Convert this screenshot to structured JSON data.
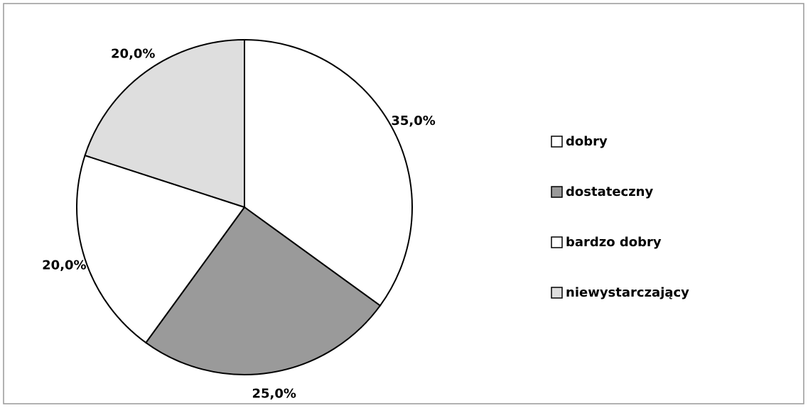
{
  "chart_data": {
    "type": "pie",
    "categories": [
      "dobry",
      "dostateczny",
      "bardzo dobry",
      "niewystarczający"
    ],
    "values": [
      35,
      25,
      20,
      20
    ],
    "value_labels": [
      "35,0%",
      "25,0%",
      "20,0%",
      "20,0%"
    ],
    "colors": [
      "#ffffff",
      "#9a9a9a",
      "#ffffff",
      "#dedede"
    ],
    "legend": "right"
  }
}
